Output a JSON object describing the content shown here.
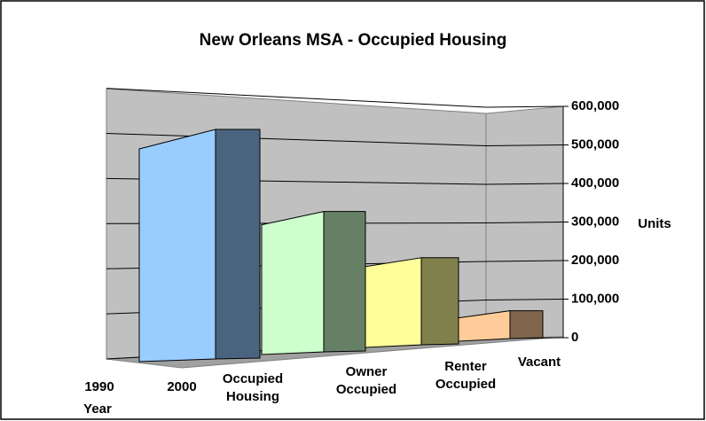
{
  "chart_data": {
    "type": "bar3d",
    "title": "New Orleans MSA - Occupied Housing",
    "categories": [
      "1990",
      "2000"
    ],
    "xlabel": "Year",
    "ylabel": "Units",
    "series": [
      {
        "name": "Occupied Housing",
        "color": "#99ccff",
        "side_color": "#4a6480",
        "values": [
          null,
          500000
        ]
      },
      {
        "name": "Owner Occupied",
        "color": "#ccffcc",
        "side_color": "#668066",
        "values": [
          null,
          305000
        ]
      },
      {
        "name": "Renter Occupied",
        "color": "#ffff99",
        "side_color": "#80804c",
        "values": [
          null,
          190000
        ]
      },
      {
        "name": "Vacant",
        "color": "#ffcc99",
        "side_color": "#80664c",
        "values": [
          null,
          55000
        ]
      }
    ],
    "ylim": [
      0,
      600000
    ],
    "yticks": [
      {
        "value": 0,
        "label": "0"
      },
      {
        "value": 100000,
        "label": "100,000"
      },
      {
        "value": 200000,
        "label": "200,000"
      },
      {
        "value": 300000,
        "label": "300,000"
      },
      {
        "value": 400000,
        "label": "400,000"
      },
      {
        "value": 500000,
        "label": "500,000"
      },
      {
        "value": 600000,
        "label": "600,000"
      }
    ],
    "grid": true
  }
}
